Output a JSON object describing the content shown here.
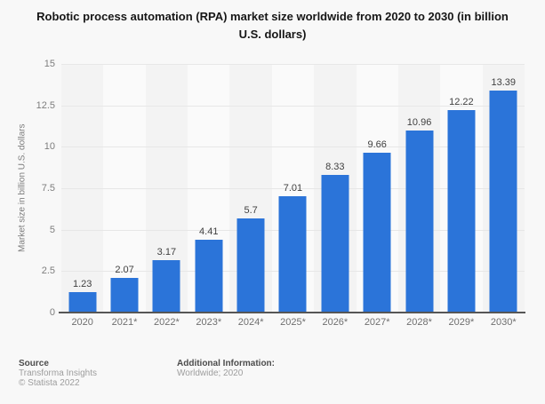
{
  "page": {
    "background": "#f8f8f8"
  },
  "chart_data": {
    "type": "bar",
    "title": "Robotic process automation (RPA) market size worldwide from 2020 to 2030 (in billion U.S. dollars)",
    "categories": [
      "2020",
      "2021*",
      "2022*",
      "2023*",
      "2024*",
      "2025*",
      "2026*",
      "2027*",
      "2028*",
      "2029*",
      "2030*"
    ],
    "values": [
      1.23,
      2.07,
      3.17,
      4.41,
      5.7,
      7.01,
      8.33,
      9.66,
      10.96,
      12.22,
      13.39
    ],
    "xlabel": "",
    "ylabel": "Market size in billion U.S. dollars",
    "ylim": [
      0,
      15
    ],
    "yticks": [
      "0",
      "2.5",
      "5",
      "7.5",
      "10",
      "12.5",
      "15"
    ],
    "grid": "horizontal",
    "legend": "none",
    "bar_color": "#2b74d9",
    "band_colors": [
      "#f3f3f3",
      "#fafafa"
    ],
    "gridline_color": "#e7e7e7",
    "axis_line_color": "#565656"
  },
  "footer": {
    "source_label": "Source",
    "source_lines": [
      "Transforma Insights",
      "© Statista 2022"
    ],
    "additional_label": "Additional Information:",
    "additional_value": "Worldwide; 2020"
  }
}
